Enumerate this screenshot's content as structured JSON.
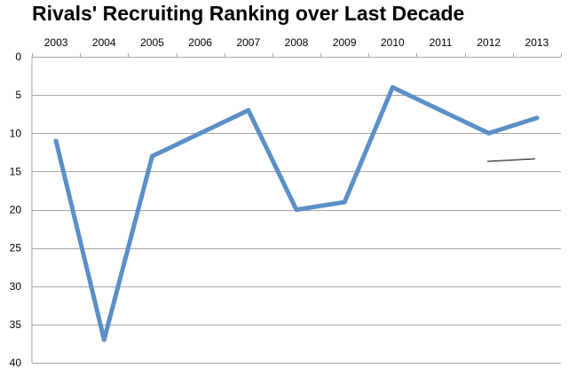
{
  "chart_data": {
    "type": "line",
    "title": "Rivals' Recruiting Ranking over Last Decade",
    "xlabel": "",
    "ylabel": "",
    "x": [
      "2003",
      "2004",
      "2005",
      "2006",
      "2007",
      "2008",
      "2009",
      "2010",
      "2011",
      "2012",
      "2013"
    ],
    "series": [
      {
        "values": [
          11,
          37,
          13,
          10,
          7,
          20,
          19,
          4,
          7,
          10,
          8
        ]
      }
    ],
    "y_ticks": [
      0,
      5,
      10,
      15,
      20,
      25,
      30,
      35,
      40
    ],
    "ylim": [
      0,
      40
    ],
    "y_reversed": true,
    "x_axis_position": "top",
    "grid": true,
    "legend": "none",
    "colors": {
      "series": "#5b8fc7",
      "grid": "#a6a6a6",
      "annotation_line": "#000000"
    }
  }
}
